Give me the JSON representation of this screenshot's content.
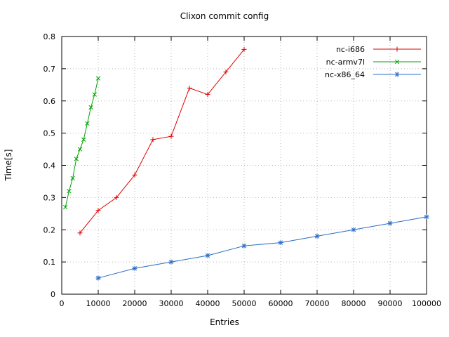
{
  "chart_data": {
    "type": "line",
    "title": "Clixon commit config",
    "xlabel": "Entries",
    "ylabel": "Time[s]",
    "xlim": [
      0,
      100000
    ],
    "ylim": [
      0,
      0.8
    ],
    "x_ticks": [
      0,
      10000,
      20000,
      30000,
      40000,
      50000,
      60000,
      70000,
      80000,
      90000,
      100000
    ],
    "y_ticks": [
      0,
      0.1,
      0.2,
      0.3,
      0.4,
      0.5,
      0.6,
      0.7,
      0.8
    ],
    "grid": true,
    "grid_style": "dotted",
    "legend_position": "top-right-inside",
    "background": "#ffffff",
    "border_color": "#000000",
    "grid_color": "#b8b8b8",
    "series": [
      {
        "name": "nc-i686",
        "color": "#e00000",
        "marker": "plus",
        "x": [
          5000,
          10000,
          15000,
          20000,
          25000,
          30000,
          35000,
          40000,
          45000,
          50000
        ],
        "y": [
          0.19,
          0.26,
          0.3,
          0.37,
          0.48,
          0.49,
          0.64,
          0.62,
          0.69,
          0.76
        ]
      },
      {
        "name": "nc-armv7l",
        "color": "#00a000",
        "marker": "cross",
        "x": [
          1000,
          2000,
          3000,
          4000,
          5000,
          6000,
          7000,
          8000,
          9000,
          10000
        ],
        "y": [
          0.27,
          0.32,
          0.36,
          0.42,
          0.45,
          0.48,
          0.53,
          0.58,
          0.62,
          0.67
        ]
      },
      {
        "name": "nc-x86_64",
        "color": "#2a6cc4",
        "marker": "star",
        "x": [
          10000,
          20000,
          30000,
          40000,
          50000,
          60000,
          70000,
          80000,
          90000,
          100000
        ],
        "y": [
          0.05,
          0.08,
          0.1,
          0.12,
          0.15,
          0.16,
          0.18,
          0.2,
          0.22,
          0.24
        ]
      }
    ]
  }
}
